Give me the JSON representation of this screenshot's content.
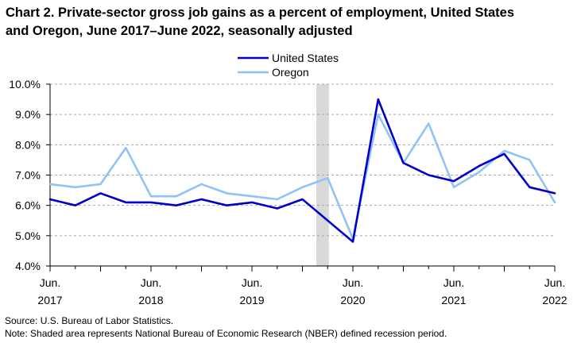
{
  "title_line1": "Chart 2. Private-sector gross job gains as a percent of employment, United States",
  "title_line2": "and Oregon, June 2017–June 2022, seasonally adjusted",
  "source_line": "Source: U.S. Bureau of Labor Statistics.",
  "note_line": "Note: Shaded area represents National Bureau of Economic Research (NBER) defined  recession period.",
  "colors": {
    "united_states": "#0000CC",
    "oregon": "#8EC4F5",
    "recession": "#D9D9D9",
    "grid": "#A6A6A6"
  },
  "chart_data": {
    "type": "line",
    "title": "Chart 2. Private-sector gross job gains as a percent of employment, United States and Oregon, June 2017–June 2022, seasonally adjusted",
    "xlabel": "",
    "ylabel": "",
    "ylim": [
      4.0,
      10.0
    ],
    "yticks": [
      4.0,
      5.0,
      6.0,
      7.0,
      8.0,
      9.0,
      10.0
    ],
    "ytick_labels": [
      "4.0%",
      "5.0%",
      "6.0%",
      "7.0%",
      "8.0%",
      "9.0%",
      "10.0%"
    ],
    "grid": "horizontal dashed",
    "legend_position": "top-center",
    "periods": [
      "Jun 2017",
      "Sep 2017",
      "Dec 2017",
      "Mar 2018",
      "Jun 2018",
      "Sep 2018",
      "Dec 2018",
      "Mar 2019",
      "Jun 2019",
      "Sep 2019",
      "Dec 2019",
      "Mar 2020",
      "Jun 2020",
      "Sep 2020",
      "Dec 2020",
      "Mar 2021",
      "Jun 2021",
      "Sep 2021",
      "Dec 2021",
      "Mar 2022",
      "Jun 2022"
    ],
    "x_tick_labels": [
      {
        "index": 0,
        "line1": "Jun.",
        "line2": "2017"
      },
      {
        "index": 4,
        "line1": "Jun.",
        "line2": "2018"
      },
      {
        "index": 8,
        "line1": "Jun.",
        "line2": "2019"
      },
      {
        "index": 12,
        "line1": "Jun.",
        "line2": "2020"
      },
      {
        "index": 16,
        "line1": "Jun.",
        "line2": "2021"
      },
      {
        "index": 20,
        "line1": "Jun.",
        "line2": "2022"
      }
    ],
    "recession": {
      "start": "Dec 2019",
      "end": "Mar 2020"
    },
    "series": [
      {
        "name": "United States",
        "key": "united_states",
        "values": [
          6.2,
          6.0,
          6.4,
          6.1,
          6.1,
          6.0,
          6.2,
          6.0,
          6.1,
          5.9,
          6.2,
          5.5,
          4.8,
          9.5,
          7.4,
          7.0,
          6.8,
          7.3,
          7.7,
          6.6,
          6.4
        ]
      },
      {
        "name": "Oregon",
        "key": "oregon",
        "values": [
          6.7,
          6.6,
          6.7,
          7.9,
          6.3,
          6.3,
          6.7,
          6.4,
          6.3,
          6.2,
          6.6,
          6.9,
          4.9,
          9.0,
          7.4,
          8.7,
          6.6,
          7.1,
          7.8,
          7.5,
          6.1
        ]
      }
    ]
  }
}
